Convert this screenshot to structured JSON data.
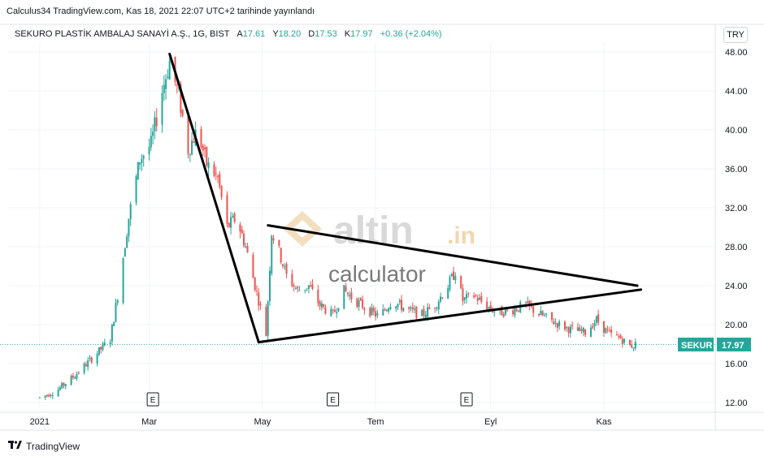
{
  "header": {
    "caption": "Calculus34 TradingView.com, Kas 18, 2021 22:07 UTC+2 tarihinde yayınlandı"
  },
  "legend": {
    "symbol": "SEKURO PLASTİK AMBALAJ SANAYİ A.Ş., 1G, BIST",
    "open_label": "A",
    "open": "17.61",
    "high_label": "Y",
    "high": "18.20",
    "low_label": "D",
    "low": "17.53",
    "close_label": "K",
    "close": "17.97",
    "change": "+0.36 (+2.04%)"
  },
  "currency": "TRY",
  "watermark": {
    "main": "altin",
    "suffix": ".in",
    "sub": "calculator"
  },
  "events_label": "E",
  "price_tag": {
    "ticker": "SEKUR",
    "value": "17.97"
  },
  "footer": {
    "brand": "TradingView",
    "icon": "tradingview-logo-icon"
  },
  "colors": {
    "up": "#26a69a",
    "down": "#ef5350",
    "trendline": "#000000",
    "price_line": "#26a69a"
  },
  "chart_data": {
    "type": "candlestick",
    "ylim": [
      11,
      49
    ],
    "yticks": [
      "48.00",
      "44.00",
      "40.00",
      "36.00",
      "32.00",
      "28.00",
      "24.00",
      "20.00",
      "16.00",
      "12.00"
    ],
    "xticks": [
      "2021",
      "Mar",
      "May",
      "Tem",
      "Eyl",
      "Kas"
    ],
    "grid": true,
    "last_price": 17.97,
    "price_path": [
      [
        "2021-01-01",
        12.5
      ],
      [
        "2021-01-10",
        13.2
      ],
      [
        "2021-01-20",
        14.8
      ],
      [
        "2021-01-29",
        16.5
      ],
      [
        "2021-02-08",
        18.5
      ],
      [
        "2021-02-12",
        23.0
      ],
      [
        "2021-02-18",
        31.0
      ],
      [
        "2021-02-24",
        37.0
      ],
      [
        "2021-03-02",
        38.5
      ],
      [
        "2021-03-08",
        44.0
      ],
      [
        "2021-03-12",
        47.0
      ],
      [
        "2021-03-17",
        43.5
      ],
      [
        "2021-03-22",
        38.0
      ],
      [
        "2021-03-27",
        40.0
      ],
      [
        "2021-04-01",
        36.5
      ],
      [
        "2021-04-07",
        35.0
      ],
      [
        "2021-04-12",
        30.0
      ],
      [
        "2021-04-17",
        31.0
      ],
      [
        "2021-04-22",
        28.0
      ],
      [
        "2021-04-27",
        24.0
      ],
      [
        "2021-05-01",
        21.0
      ],
      [
        "2021-05-03",
        19.0
      ],
      [
        "2021-05-06",
        29.5
      ],
      [
        "2021-05-10",
        27.5
      ],
      [
        "2021-05-14",
        25.0
      ],
      [
        "2021-05-20",
        23.5
      ],
      [
        "2021-05-26",
        24.0
      ],
      [
        "2021-06-01",
        22.0
      ],
      [
        "2021-06-08",
        21.0
      ],
      [
        "2021-06-14",
        23.5
      ],
      [
        "2021-06-20",
        22.5
      ],
      [
        "2021-06-27",
        21.5
      ],
      [
        "2021-07-03",
        20.8
      ],
      [
        "2021-07-10",
        22.5
      ],
      [
        "2021-07-18",
        21.5
      ],
      [
        "2021-07-26",
        21.0
      ],
      [
        "2021-08-02",
        22.0
      ],
      [
        "2021-08-09",
        24.0
      ],
      [
        "2021-08-13",
        25.5
      ],
      [
        "2021-08-17",
        22.5
      ],
      [
        "2021-08-23",
        23.0
      ],
      [
        "2021-08-29",
        22.0
      ],
      [
        "2021-09-05",
        21.2
      ],
      [
        "2021-09-12",
        21.5
      ],
      [
        "2021-09-20",
        22.0
      ],
      [
        "2021-09-28",
        21.0
      ],
      [
        "2021-10-06",
        20.2
      ],
      [
        "2021-10-14",
        19.5
      ],
      [
        "2021-10-22",
        19.2
      ],
      [
        "2021-10-28",
        20.5
      ],
      [
        "2021-11-04",
        19.0
      ],
      [
        "2021-11-10",
        18.6
      ],
      [
        "2021-11-15",
        17.8
      ],
      [
        "2021-11-18",
        17.97
      ]
    ],
    "trendlines": [
      {
        "name": "",
        "points": [
          [
            "2021-03-12",
            47.8
          ],
          [
            "2021-04-29",
            18.2
          ]
        ]
      },
      {
        "name": "",
        "points": [
          [
            "2021-04-29",
            18.2
          ],
          [
            "2021-11-21",
            23.6
          ]
        ]
      },
      {
        "name": "",
        "points": [
          [
            "2021-05-04",
            30.2
          ],
          [
            "2021-11-19",
            24.0
          ]
        ]
      }
    ],
    "events": [
      {
        "label": "E",
        "date": "2021-03-03"
      },
      {
        "label": "E",
        "date": "2021-06-08"
      },
      {
        "label": "E",
        "date": "2021-08-19"
      }
    ]
  }
}
